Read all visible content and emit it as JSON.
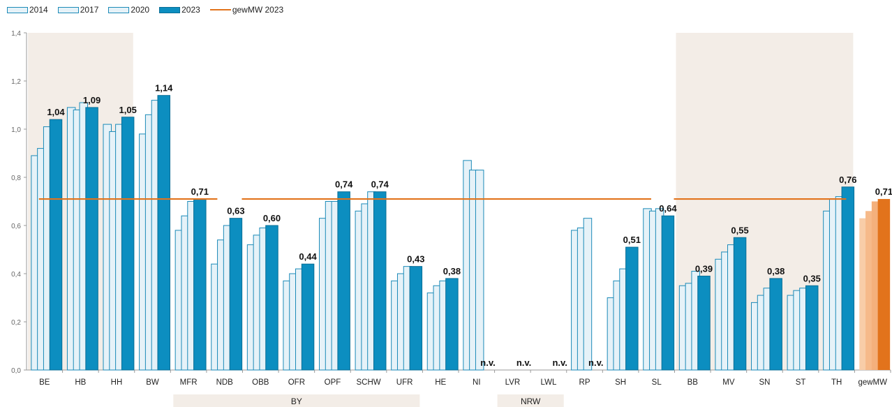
{
  "chart_data": {
    "type": "bar",
    "ylim": [
      0,
      1.4
    ],
    "yticks": [
      "0,0",
      "0,2",
      "0,4",
      "0,6",
      "0,8",
      "1,0",
      "1,2",
      "1,4"
    ],
    "categories": [
      "BE",
      "HB",
      "HH",
      "BW",
      "MFR",
      "NDB",
      "OBB",
      "OFR",
      "OPF",
      "SCHW",
      "UFR",
      "HE",
      "NI",
      "LVR",
      "LWL",
      "RP",
      "SH",
      "SL",
      "BB",
      "MV",
      "SN",
      "ST",
      "TH",
      "gewMW"
    ],
    "series": [
      {
        "name": "2014",
        "values": [
          0.89,
          1.09,
          1.02,
          0.98,
          0.58,
          0.44,
          0.52,
          0.37,
          0.63,
          0.66,
          0.37,
          0.32,
          0.87,
          null,
          null,
          0.58,
          0.3,
          0.67,
          0.35,
          0.46,
          0.28,
          0.31,
          0.66,
          0.63
        ]
      },
      {
        "name": "2017",
        "values": [
          0.92,
          1.08,
          0.99,
          1.06,
          0.64,
          0.54,
          0.56,
          0.4,
          0.7,
          0.69,
          0.4,
          0.35,
          0.83,
          null,
          null,
          0.59,
          0.37,
          0.66,
          0.36,
          0.49,
          0.31,
          0.33,
          0.71,
          0.66
        ]
      },
      {
        "name": "2020",
        "values": [
          1.01,
          1.11,
          1.02,
          1.12,
          0.7,
          0.6,
          0.59,
          0.42,
          0.7,
          0.74,
          0.43,
          0.37,
          0.83,
          null,
          null,
          0.63,
          0.42,
          0.67,
          0.41,
          0.52,
          0.34,
          0.34,
          0.72,
          0.7
        ]
      },
      {
        "name": "2023",
        "values": [
          1.04,
          1.09,
          1.05,
          1.14,
          0.71,
          0.63,
          0.6,
          0.44,
          0.74,
          0.74,
          0.43,
          0.38,
          null,
          null,
          null,
          null,
          0.51,
          0.64,
          0.39,
          0.55,
          0.38,
          0.35,
          0.76,
          0.71
        ]
      }
    ],
    "labels_2023": [
      "1,04",
      "1,09",
      "1,05",
      "1,14",
      "0,71",
      "0,63",
      "0,60",
      "0,44",
      "0,74",
      "0,74",
      "0,43",
      "0,38",
      "n.v.",
      "n.v.",
      "n.v.",
      "n.v.",
      "0,51",
      "0,64",
      "0,39",
      "0,55",
      "0,38",
      "0,35",
      "0,76",
      "0,71"
    ],
    "reference_line": {
      "name": "gewMW 2023",
      "value": 0.71
    },
    "groups": [
      {
        "label": "BY",
        "from": "MFR",
        "to": "UFR"
      },
      {
        "label": "NRW",
        "from": "LVR",
        "to": "LWL"
      }
    ],
    "shaded_ranges": [
      [
        "BE",
        "HH"
      ],
      [
        "BB",
        "TH"
      ]
    ],
    "legend": [
      "2014",
      "2017",
      "2020",
      "2023",
      "gewMW 2023"
    ],
    "legend_position": "top-left",
    "grid": false,
    "colors": {
      "old_fill": "#E6F2F8",
      "old_stroke": "#1B8AB8",
      "bar_2023": "#0C8EC0",
      "bar_2023_stroke": "#0A6E96",
      "avg_line": "#E2731C",
      "gewmw_2023": "#E2731C",
      "gewmw_light": [
        "#F8CDA8",
        "#F6BA8A",
        "#F4B07C"
      ],
      "shade": "#F3EDE7"
    }
  }
}
